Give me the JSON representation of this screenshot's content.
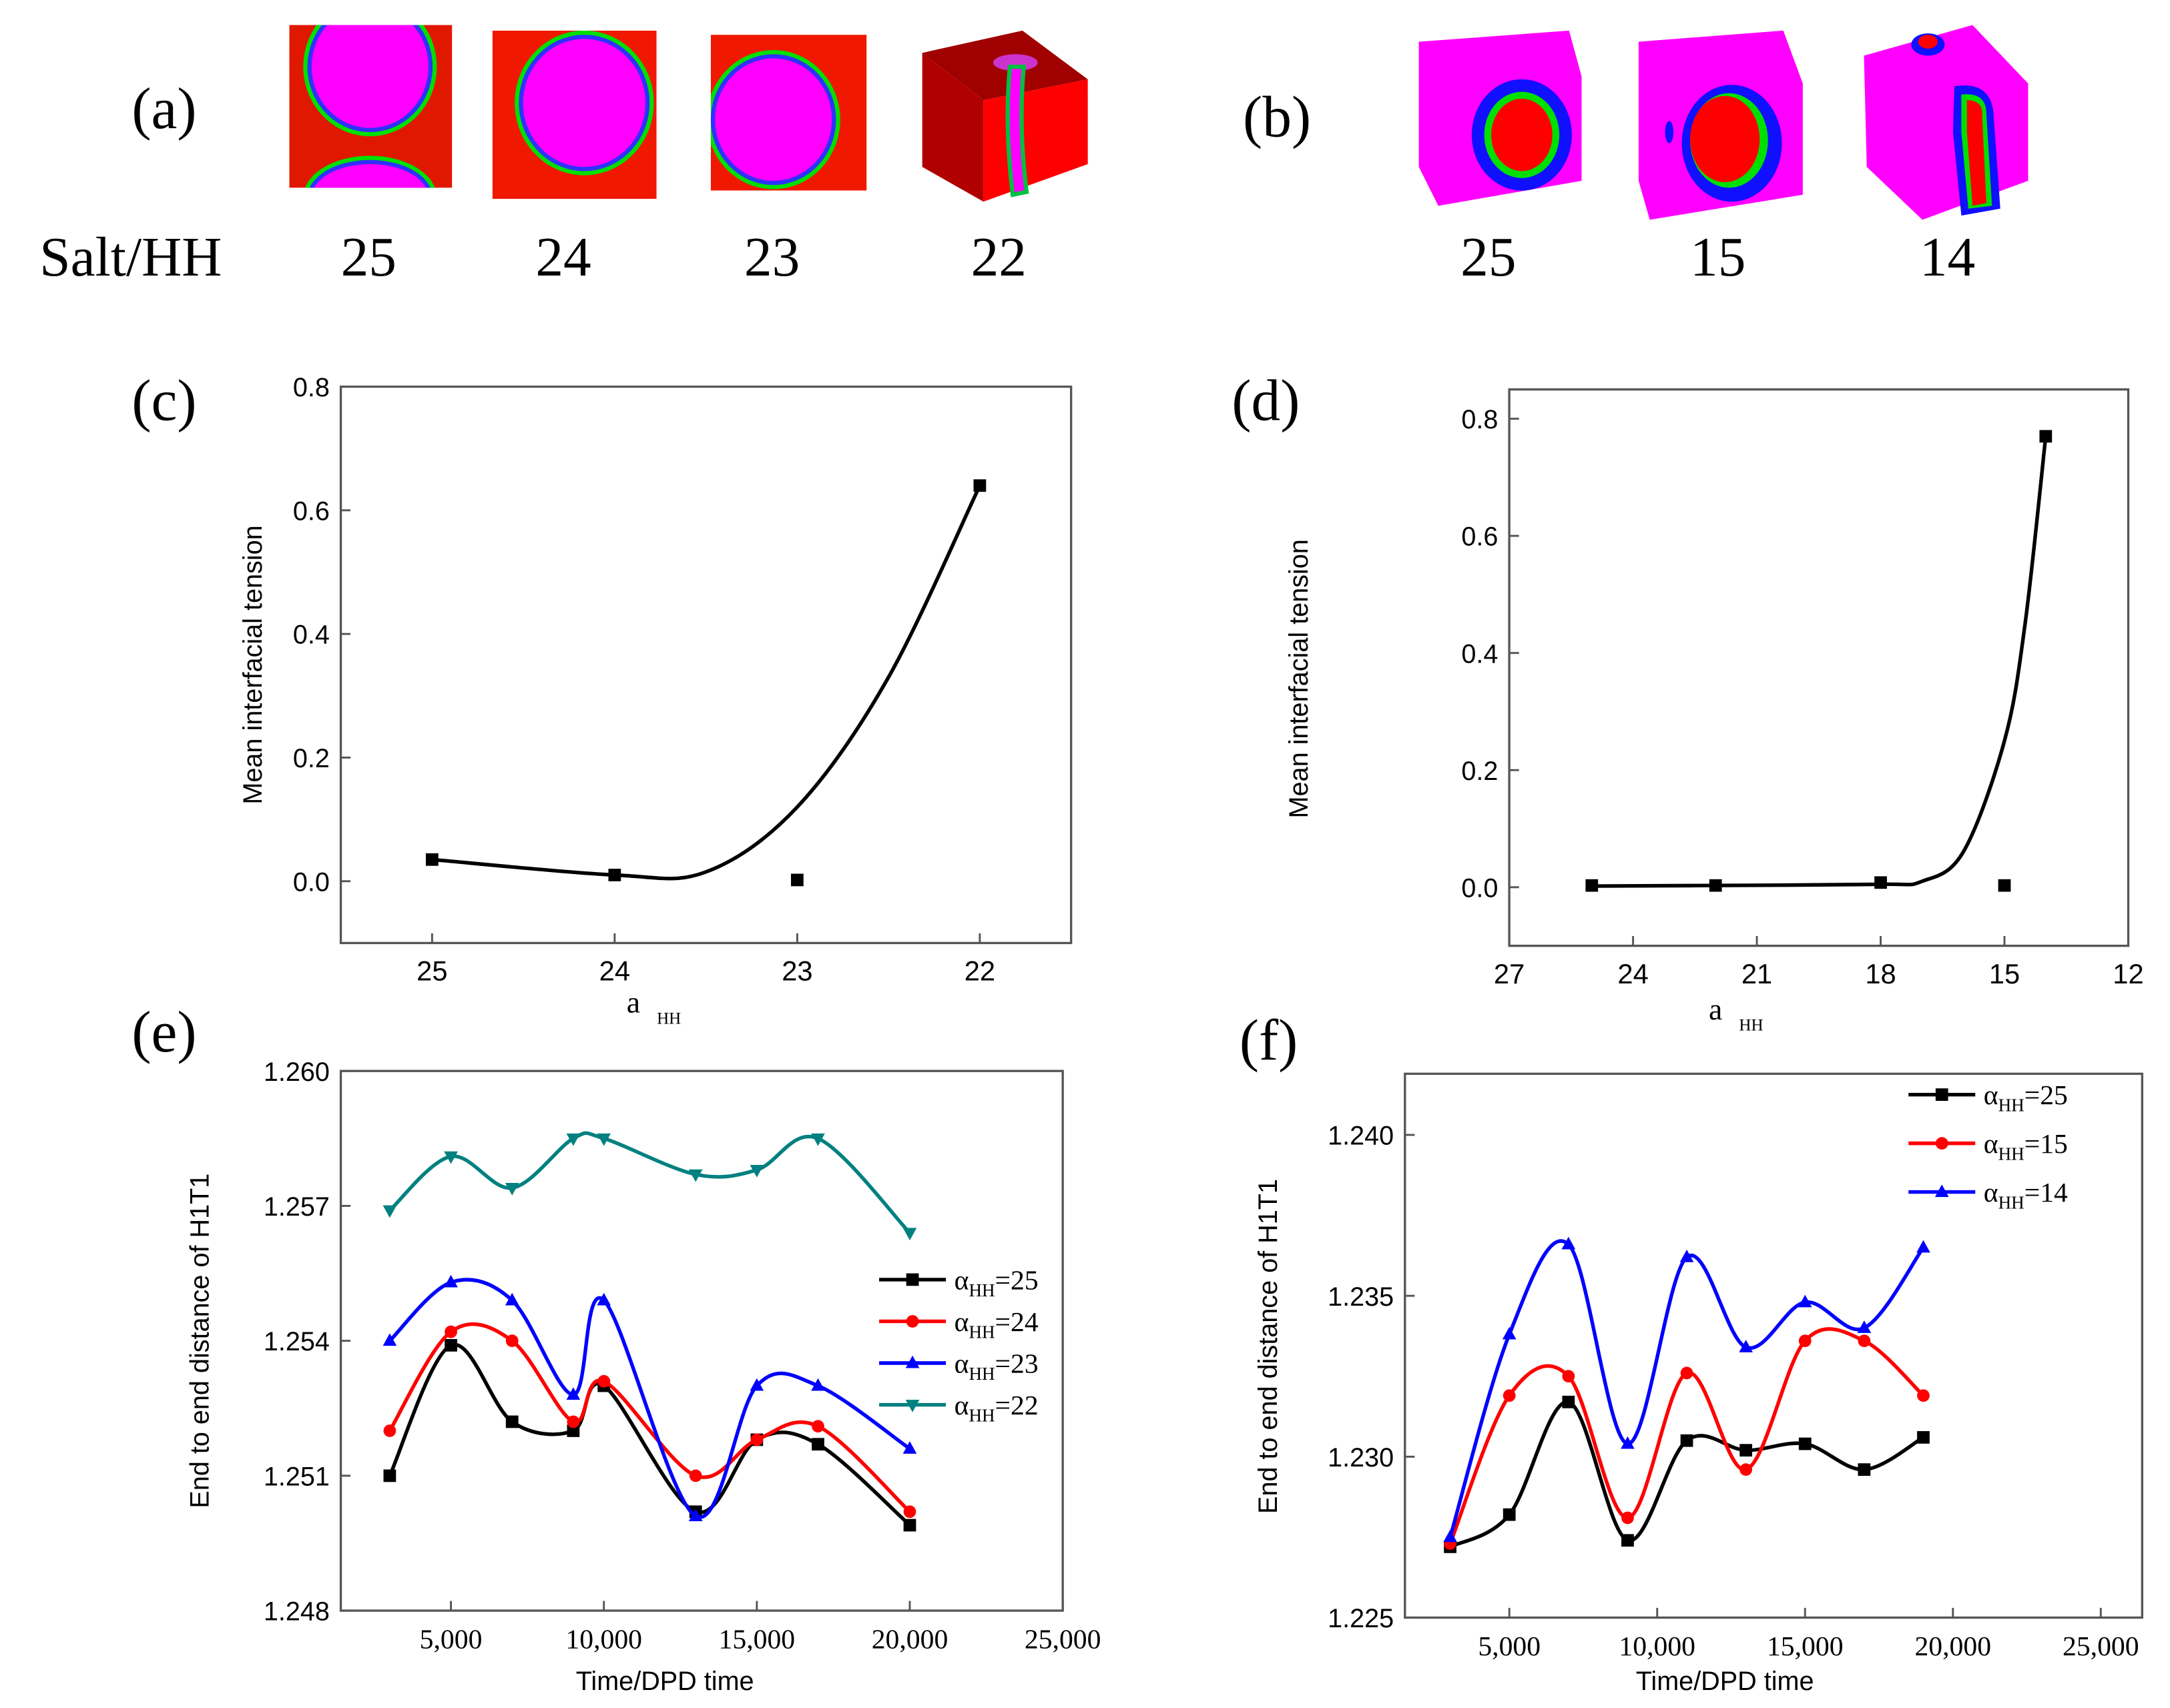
{
  "panel_a": {
    "label": "(a)",
    "row_label": "Salt/HH",
    "snapshots": [
      {
        "value": "25"
      },
      {
        "value": "24"
      },
      {
        "value": "23"
      },
      {
        "value": "22"
      }
    ]
  },
  "panel_b": {
    "label": "(b)",
    "snapshots": [
      {
        "value": "25"
      },
      {
        "value": "15"
      },
      {
        "value": "14"
      }
    ]
  },
  "colors": {
    "magenta": "#ff00ff",
    "red": "#ff0000",
    "blue": "#0000ff",
    "green": "#00ff00",
    "darkred": "#b00000"
  },
  "chart_data": [
    {
      "id": "c",
      "panel_label": "(c)",
      "type": "scatter",
      "xlabel": "a",
      "xlabel_sub": "HH",
      "ylabel": "Mean interfacial tension",
      "xlim": [
        25.5,
        21.5
      ],
      "ylim": [
        -0.1,
        0.8
      ],
      "xticks": [
        25,
        24,
        23,
        22
      ],
      "xtick_labels": [
        "25",
        "24",
        "23",
        "22"
      ],
      "yticks": [
        0.0,
        0.2,
        0.4,
        0.6,
        0.8
      ],
      "ytick_labels": [
        "0.0",
        "0.2",
        "0.4",
        "0.6",
        "0.8"
      ],
      "series": [
        {
          "name": "tension",
          "color": "#000000",
          "marker": "square",
          "x": [
            25,
            24,
            23,
            22
          ],
          "y": [
            0.035,
            0.01,
            0.002,
            0.64
          ],
          "fit_x": [
            25,
            24,
            23.5,
            23,
            22.5,
            22
          ],
          "fit_y": [
            0.035,
            0.01,
            0.015,
            0.12,
            0.33,
            0.64
          ]
        }
      ]
    },
    {
      "id": "d",
      "panel_label": "(d)",
      "type": "scatter",
      "xlabel": "a",
      "xlabel_sub": "HH",
      "ylabel": "Mean interfacial tension",
      "xlim": [
        27,
        12
      ],
      "ylim": [
        -0.1,
        0.85
      ],
      "xticks": [
        27,
        24,
        21,
        18,
        15,
        12
      ],
      "xtick_labels": [
        "27",
        "24",
        "21",
        "18",
        "15",
        "12"
      ],
      "yticks": [
        0.0,
        0.2,
        0.4,
        0.6,
        0.8
      ],
      "ytick_labels": [
        "0.0",
        "0.2",
        "0.4",
        "0.6",
        "0.8"
      ],
      "series": [
        {
          "name": "tension",
          "color": "#000000",
          "marker": "square",
          "x": [
            25,
            22,
            18,
            15,
            14
          ],
          "y": [
            0.003,
            0.003,
            0.008,
            0.003,
            0.77
          ],
          "fit_x": [
            25,
            22,
            18,
            17,
            16,
            15,
            14.5,
            14
          ],
          "fit_y": [
            0.002,
            0.003,
            0.005,
            0.01,
            0.06,
            0.25,
            0.45,
            0.77
          ]
        }
      ]
    },
    {
      "id": "e",
      "panel_label": "(e)",
      "type": "line",
      "xlabel": "Time/DPD time",
      "ylabel": "End to end distance of H1T1",
      "xlim": [
        1400,
        25000
      ],
      "ylim": [
        1.248,
        1.26
      ],
      "xticks": [
        5000,
        10000,
        15000,
        20000,
        25000
      ],
      "xtick_labels": [
        "5,000",
        "10,000",
        "15,000",
        "20,000",
        "25,000"
      ],
      "yticks": [
        1.248,
        1.251,
        1.254,
        1.257,
        1.26
      ],
      "ytick_labels": [
        "1.248",
        "1.251",
        "1.254",
        "1.257",
        "1.260"
      ],
      "legend_position": "center-right",
      "series": [
        {
          "name": "α",
          "sub": "HH",
          "suffix": "=25",
          "color": "#000000",
          "marker": "square",
          "x": [
            3000,
            5000,
            7000,
            9000,
            10000,
            13000,
            15000,
            17000,
            20000
          ],
          "y": [
            1.251,
            1.2539,
            1.2522,
            1.252,
            1.253,
            1.2502,
            1.2518,
            1.2517,
            1.2499
          ]
        },
        {
          "name": "α",
          "sub": "HH",
          "suffix": "=24",
          "color": "#ff0000",
          "marker": "circle",
          "x": [
            3000,
            5000,
            7000,
            9000,
            10000,
            13000,
            15000,
            17000,
            20000
          ],
          "y": [
            1.252,
            1.2542,
            1.254,
            1.2522,
            1.2531,
            1.251,
            1.2518,
            1.2521,
            1.2502
          ]
        },
        {
          "name": "α",
          "sub": "HH",
          "suffix": "=23",
          "color": "#0000ff",
          "marker": "triangle-up",
          "x": [
            3000,
            5000,
            7000,
            9000,
            10000,
            13000,
            15000,
            17000,
            20000
          ],
          "y": [
            1.254,
            1.2553,
            1.2549,
            1.2528,
            1.2549,
            1.2501,
            1.253,
            1.253,
            1.2516
          ]
        },
        {
          "name": "α",
          "sub": "HH",
          "suffix": "=22",
          "color": "#008080",
          "marker": "triangle-down",
          "x": [
            3000,
            5000,
            7000,
            9000,
            10000,
            13000,
            15000,
            17000,
            20000
          ],
          "y": [
            1.2569,
            1.2581,
            1.2574,
            1.2585,
            1.2585,
            1.2577,
            1.2578,
            1.2585,
            1.2564
          ]
        }
      ]
    },
    {
      "id": "f",
      "panel_label": "(f)",
      "type": "line",
      "xlabel": "Time/DPD time",
      "ylabel": "End to end distance of H1T1",
      "xlim": [
        1470,
        26400
      ],
      "ylim": [
        1.225,
        1.2419
      ],
      "xticks": [
        5000,
        10000,
        15000,
        20000,
        25000
      ],
      "xtick_labels": [
        "5,000",
        "10,000",
        "15,000",
        "20,000",
        "25,000"
      ],
      "yticks": [
        1.225,
        1.23,
        1.235,
        1.24
      ],
      "ytick_labels": [
        "1.225",
        "1.230",
        "1.235",
        "1.240"
      ],
      "legend_position": "top-right",
      "series": [
        {
          "name": "α",
          "sub": "HH",
          "suffix": "=25",
          "color": "#000000",
          "marker": "square",
          "x": [
            3000,
            5000,
            7000,
            9000,
            11000,
            13000,
            15000,
            17000,
            19000
          ],
          "y": [
            1.2272,
            1.2282,
            1.2317,
            1.2274,
            1.2305,
            1.2302,
            1.2304,
            1.2296,
            1.2306
          ]
        },
        {
          "name": "α",
          "sub": "HH",
          "suffix": "=15",
          "color": "#ff0000",
          "marker": "circle",
          "x": [
            3000,
            5000,
            7000,
            9000,
            11000,
            13000,
            15000,
            17000,
            19000
          ],
          "y": [
            1.2273,
            1.2319,
            1.2325,
            1.2281,
            1.2326,
            1.2296,
            1.2336,
            1.2336,
            1.2319
          ]
        },
        {
          "name": "α",
          "sub": "HH",
          "suffix": "=14",
          "color": "#0000ff",
          "marker": "triangle-up",
          "x": [
            3000,
            5000,
            7000,
            9000,
            11000,
            13000,
            15000,
            17000,
            19000
          ],
          "y": [
            1.2275,
            1.2338,
            1.2366,
            1.2304,
            1.2362,
            1.2334,
            1.2348,
            1.234,
            1.2365
          ]
        }
      ]
    }
  ]
}
